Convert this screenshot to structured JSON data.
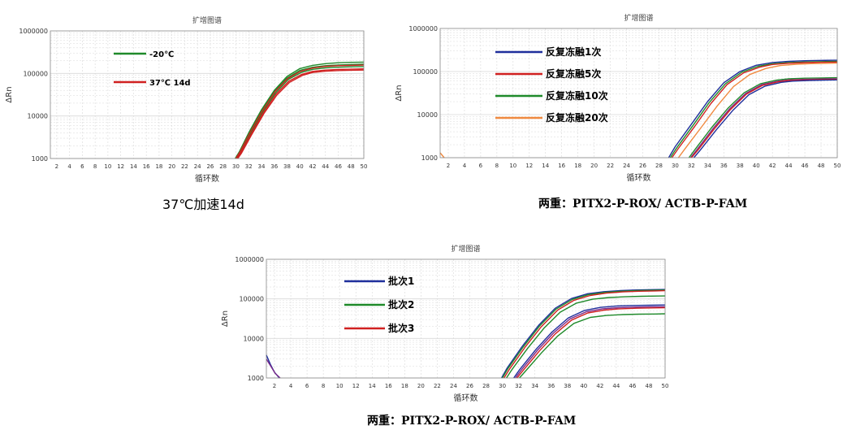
{
  "colors": {
    "blue": "#1f2f9c",
    "red": "#d02020",
    "green": "#1f8a2a",
    "orange": "#f08a40",
    "purple": "#7a2a8a",
    "grid": "#d8d8d8",
    "frame": "#888888"
  },
  "captions": [
    "37℃加速14d",
    "两重：PITX2-P-ROX/ ACTB-P-FAM",
    "两重：PITX2-P-ROX/ ACTB-P-FAM"
  ],
  "chart_data": [
    {
      "type": "line",
      "title": "扩增图谱",
      "xlabel": "循环数",
      "ylabel": "ΔRn",
      "y_scale": "log",
      "xlim": [
        1,
        50
      ],
      "ylim": [
        1000,
        1000000
      ],
      "x_ticks": [
        2,
        4,
        6,
        8,
        10,
        12,
        14,
        16,
        18,
        20,
        22,
        24,
        26,
        28,
        30,
        32,
        34,
        36,
        38,
        40,
        42,
        44,
        46,
        48,
        50
      ],
      "y_ticks": [
        "1000",
        "10000",
        "100000",
        "1000000"
      ],
      "grid": true,
      "legend_position": "top-left",
      "legend": [
        {
          "name": "-20℃",
          "color": "#1f8a2a"
        },
        {
          "name": "37℃ 14d",
          "color": "#d02020"
        }
      ],
      "series": [
        {
          "color": "#1f8a2a",
          "x": [
            29.9,
            30.5,
            32,
            34,
            36,
            38,
            40,
            42,
            44,
            46,
            48,
            50
          ],
          "y": [
            1000,
            1400,
            4000,
            14000,
            40000,
            85000,
            130000,
            155000,
            170000,
            178000,
            182000,
            185000
          ]
        },
        {
          "color": "#1f8a2a",
          "x": [
            29.9,
            30.5,
            32,
            34,
            36,
            38,
            40,
            42,
            44,
            46,
            48,
            50
          ],
          "y": [
            1000,
            1400,
            3800,
            13000,
            37000,
            78000,
            118000,
            140000,
            152000,
            158000,
            162000,
            165000
          ]
        },
        {
          "color": "#1f8a2a",
          "x": [
            30.1,
            30.7,
            32.2,
            34.2,
            36.2,
            38.2,
            40.2,
            42,
            44,
            46,
            48,
            50
          ],
          "y": [
            1000,
            1400,
            3700,
            12500,
            35000,
            72000,
            105000,
            125000,
            135000,
            140000,
            143000,
            145000
          ]
        },
        {
          "color": "#d02020",
          "x": [
            30,
            30.6,
            32.1,
            34.1,
            36.1,
            38.1,
            40.1,
            42,
            44,
            46,
            48,
            50
          ],
          "y": [
            1000,
            1400,
            3800,
            13000,
            37000,
            76000,
            112000,
            134000,
            146000,
            152000,
            155000,
            157000
          ]
        },
        {
          "color": "#d02020",
          "x": [
            30.2,
            30.8,
            32.3,
            34.3,
            36.3,
            38.3,
            40.3,
            42,
            44,
            46,
            48,
            50
          ],
          "y": [
            1000,
            1400,
            3600,
            12000,
            33000,
            66000,
            95000,
            112000,
            120000,
            124000,
            126000,
            128000
          ]
        },
        {
          "color": "#d02020",
          "x": [
            30.3,
            30.9,
            32.4,
            34.4,
            36.4,
            38.4,
            40.4,
            42,
            44,
            46,
            48,
            50
          ],
          "y": [
            1000,
            1350,
            3500,
            11500,
            31000,
            62000,
            90000,
            105000,
            113000,
            117000,
            119000,
            120000
          ]
        }
      ]
    },
    {
      "type": "line",
      "title": "扩增图谱",
      "xlabel": "循环数",
      "ylabel": "ΔRn",
      "y_scale": "log",
      "xlim": [
        1,
        50
      ],
      "ylim": [
        1000,
        1000000
      ],
      "x_ticks": [
        2,
        4,
        6,
        8,
        10,
        12,
        14,
        16,
        18,
        20,
        22,
        24,
        26,
        28,
        30,
        32,
        34,
        36,
        38,
        40,
        42,
        44,
        46,
        48,
        50
      ],
      "y_ticks": [
        "1000",
        "10000",
        "100000",
        "1000000"
      ],
      "grid": true,
      "legend_position": "top-left",
      "legend": [
        {
          "name": "反复冻融1次",
          "color": "#1f2f9c"
        },
        {
          "name": "反复冻融5次",
          "color": "#d02020"
        },
        {
          "name": "反复冻融10次",
          "color": "#1f8a2a"
        },
        {
          "name": "反复冻融20次",
          "color": "#f08a40"
        }
      ],
      "series": [
        {
          "color": "#f08a40",
          "x": [
            1,
            1.5
          ],
          "y": [
            1300,
            1000
          ]
        },
        {
          "color": "#1f2f9c",
          "x": [
            29.2,
            30,
            32,
            34,
            36,
            38,
            40,
            42,
            44,
            46,
            48,
            50
          ],
          "y": [
            1000,
            1800,
            6000,
            20000,
            55000,
            100000,
            140000,
            162000,
            172000,
            178000,
            181000,
            183000
          ]
        },
        {
          "color": "#1f8a2a",
          "x": [
            29.4,
            30.2,
            32.2,
            34.2,
            36.2,
            38.2,
            40.2,
            42,
            44,
            46,
            48,
            50
          ],
          "y": [
            1000,
            1700,
            5600,
            19000,
            52000,
            96000,
            132000,
            152000,
            162000,
            167000,
            170000,
            172000
          ]
        },
        {
          "color": "#d02020",
          "x": [
            29.6,
            30.4,
            32.4,
            34.4,
            36.4,
            38.4,
            40.4,
            42,
            44,
            46,
            48,
            50
          ],
          "y": [
            1000,
            1650,
            5300,
            18000,
            50000,
            92000,
            126000,
            146000,
            156000,
            161000,
            164000,
            166000
          ]
        },
        {
          "color": "#f08a40",
          "x": [
            30.4,
            31.2,
            33.2,
            35.2,
            37.2,
            39.2,
            41.2,
            43,
            45,
            47,
            49,
            50
          ],
          "y": [
            1000,
            1600,
            5000,
            16000,
            45000,
            85000,
            118000,
            138000,
            148000,
            153000,
            156000,
            157000
          ]
        },
        {
          "color": "#1f8a2a",
          "x": [
            31.7,
            32.5,
            34.5,
            36.5,
            38.5,
            40.5,
            42.5,
            44,
            46,
            48,
            50
          ],
          "y": [
            1000,
            1600,
            5000,
            14000,
            32000,
            52000,
            63000,
            68000,
            70000,
            71000,
            72000
          ]
        },
        {
          "color": "#7a2a8a",
          "x": [
            31.9,
            32.7,
            34.7,
            36.7,
            38.7,
            40.7,
            42.7,
            44,
            46,
            48,
            50
          ],
          "y": [
            1000,
            1550,
            4800,
            13500,
            31000,
            50000,
            60000,
            64000,
            66000,
            67000,
            68000
          ]
        },
        {
          "color": "#d02020",
          "x": [
            32,
            32.8,
            34.8,
            36.8,
            38.8,
            40.8,
            42.8,
            44,
            46,
            48,
            50
          ],
          "y": [
            1000,
            1500,
            4600,
            13000,
            30000,
            48000,
            58000,
            62000,
            64000,
            65000,
            66000
          ]
        },
        {
          "color": "#1f2f9c",
          "x": [
            32.3,
            33.1,
            35.1,
            37.1,
            39.1,
            41.1,
            43.1,
            44.5,
            46.5,
            48.5,
            50
          ],
          "y": [
            1000,
            1500,
            4500,
            12500,
            29000,
            46000,
            56000,
            60000,
            62000,
            63000,
            64000
          ]
        }
      ]
    },
    {
      "type": "line",
      "title": "扩增图谱",
      "xlabel": "循环数",
      "ylabel": "ΔRn",
      "y_scale": "log",
      "xlim": [
        1,
        50
      ],
      "ylim": [
        1000,
        1000000
      ],
      "x_ticks": [
        2,
        4,
        6,
        8,
        10,
        12,
        14,
        16,
        18,
        20,
        22,
        24,
        26,
        28,
        30,
        32,
        34,
        36,
        38,
        40,
        42,
        44,
        46,
        48,
        50
      ],
      "y_ticks": [
        "1000",
        "10000",
        "100000",
        "1000000"
      ],
      "grid": true,
      "legend_position": "top-left",
      "legend": [
        {
          "name": "批次1",
          "color": "#1f2f9c"
        },
        {
          "name": "批次2",
          "color": "#1f8a2a"
        },
        {
          "name": "批次3",
          "color": "#d02020"
        }
      ],
      "series": [
        {
          "color": "#1f2f9c",
          "x": [
            1,
            1.5,
            2,
            2.6
          ],
          "y": [
            3800,
            2200,
            1400,
            1000
          ]
        },
        {
          "color": "#7a2a8a",
          "x": [
            1,
            1.6,
            2.1,
            2.7
          ],
          "y": [
            3000,
            1900,
            1300,
            1000
          ]
        },
        {
          "color": "#1f2f9c",
          "x": [
            29.9,
            30.6,
            32.5,
            34.5,
            36.5,
            38.5,
            40.5,
            42.5,
            44.5,
            46.5,
            48.5,
            50
          ],
          "y": [
            1000,
            1800,
            6500,
            22000,
            58000,
            102000,
            135000,
            152000,
            162000,
            168000,
            171000,
            173000
          ]
        },
        {
          "color": "#1f8a2a",
          "x": [
            30,
            30.7,
            32.6,
            34.6,
            36.6,
            38.6,
            40.6,
            42.6,
            44.6,
            46.6,
            48.6,
            50
          ],
          "y": [
            1000,
            1750,
            6200,
            21000,
            55000,
            97000,
            128000,
            146000,
            156000,
            162000,
            165000,
            167000
          ]
        },
        {
          "color": "#d02020",
          "x": [
            30.2,
            30.9,
            32.8,
            34.8,
            36.8,
            38.8,
            40.8,
            42.8,
            44.8,
            46.8,
            48.8,
            50
          ],
          "y": [
            1000,
            1700,
            6000,
            20000,
            52000,
            92000,
            122000,
            140000,
            150000,
            156000,
            159000,
            161000
          ]
        },
        {
          "color": "#1f8a2a",
          "x": [
            30.5,
            31.2,
            33.1,
            35.1,
            37.1,
            39.1,
            41.1,
            43.1,
            45.1,
            47.1,
            49.1,
            50
          ],
          "y": [
            1000,
            1650,
            5600,
            18000,
            46000,
            78000,
            98000,
            108000,
            113000,
            116000,
            118000,
            118500
          ]
        },
        {
          "color": "#1f2f9c",
          "x": [
            31.4,
            32.1,
            34.1,
            36.1,
            38.1,
            40.1,
            42.1,
            44.1,
            46.1,
            48.1,
            50
          ],
          "y": [
            1000,
            1600,
            5200,
            14500,
            33000,
            51000,
            61000,
            66000,
            68000,
            69000,
            70000
          ]
        },
        {
          "color": "#7a2a8a",
          "x": [
            31.6,
            32.3,
            34.3,
            36.3,
            38.3,
            40.3,
            42.3,
            44.3,
            46.3,
            48.3,
            50
          ],
          "y": [
            1000,
            1550,
            5000,
            13800,
            31000,
            47000,
            56000,
            60000,
            62000,
            63000,
            63500
          ]
        },
        {
          "color": "#d02020",
          "x": [
            31.8,
            32.5,
            34.5,
            36.5,
            38.5,
            40.5,
            42.5,
            44.5,
            46.5,
            48.5,
            50
          ],
          "y": [
            1000,
            1500,
            4700,
            13000,
            29000,
            44000,
            52000,
            56000,
            58000,
            59000,
            59500
          ]
        },
        {
          "color": "#1f8a2a",
          "x": [
            32.1,
            32.8,
            34.8,
            36.8,
            38.8,
            40.8,
            42.8,
            44.8,
            46.8,
            48.8,
            50
          ],
          "y": [
            1000,
            1450,
            4300,
            11500,
            24000,
            34000,
            38000,
            40000,
            41000,
            41500,
            42000
          ]
        }
      ]
    }
  ]
}
